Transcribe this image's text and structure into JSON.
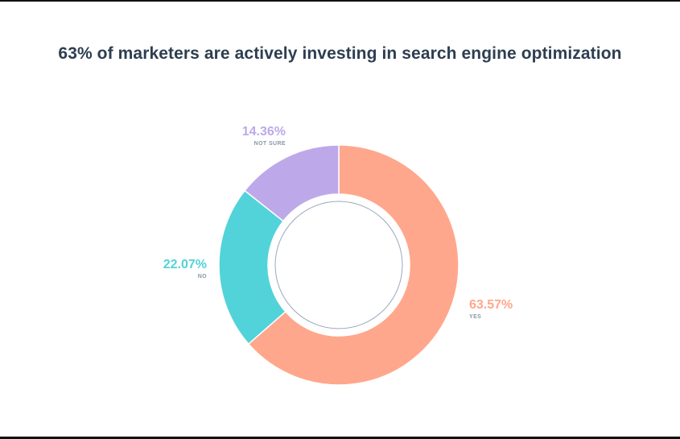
{
  "chart_data": {
    "type": "pie",
    "title": "63% of marketers are actively investing in search engine optimization",
    "categories": [
      "YES",
      "NO",
      "NOT SURE"
    ],
    "values": [
      63.57,
      22.07,
      14.36
    ],
    "labels": [
      "63.57%",
      "22.07%",
      "14.36%"
    ],
    "colors": [
      "#ffa78c",
      "#51d3d9",
      "#bda9ea"
    ],
    "legend": "none"
  }
}
